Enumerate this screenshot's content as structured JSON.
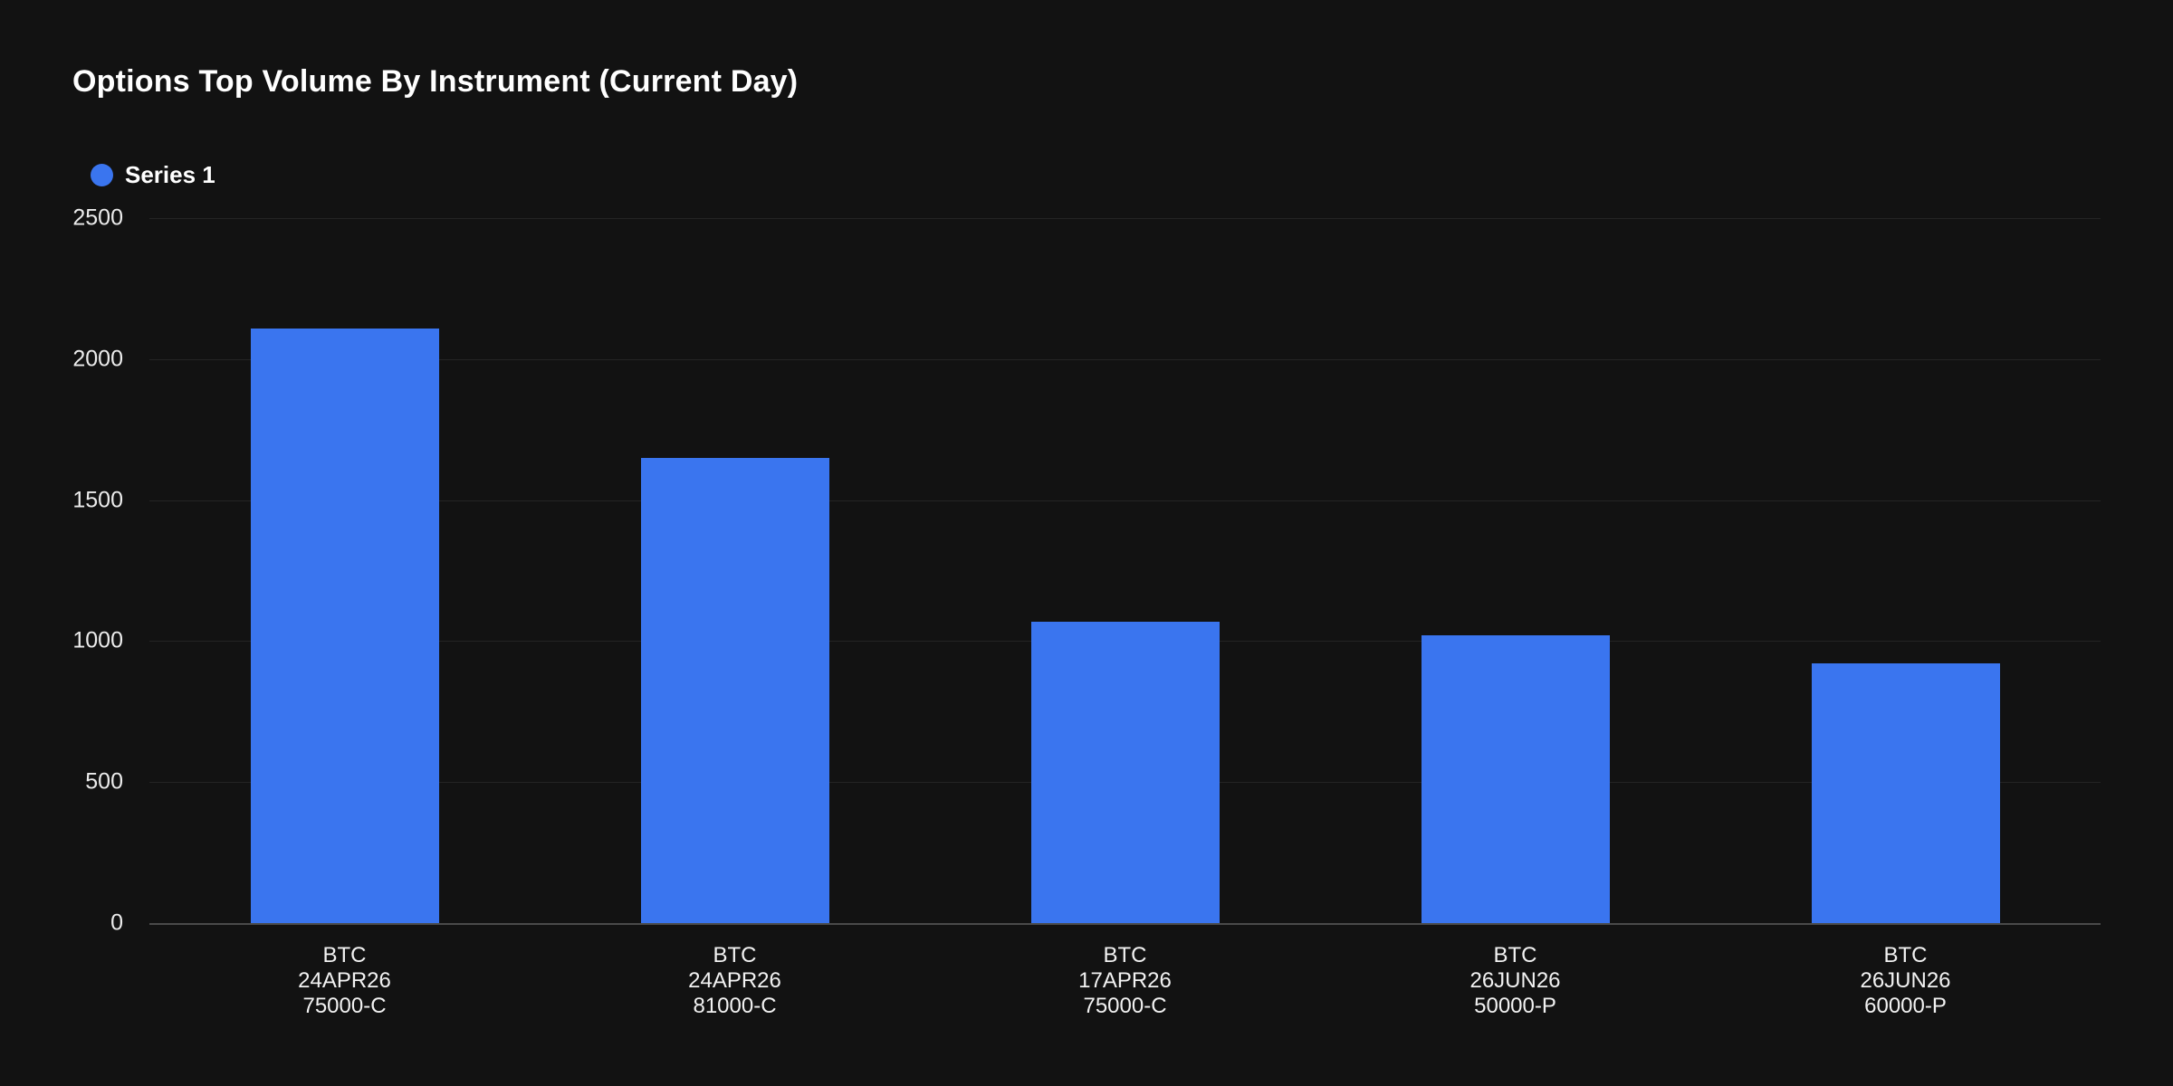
{
  "header": {
    "title": "Options Top Volume By Instrument (Current Day)"
  },
  "legend": {
    "items": [
      {
        "label": "Series 1",
        "color": "#3a75ef"
      }
    ]
  },
  "chart_data": {
    "type": "bar",
    "title": "Options Top Volume By Instrument (Current Day)",
    "categories": [
      "BTC\n24APR26\n75000-C",
      "BTC\n24APR26\n81000-C",
      "BTC\n17APR26\n75000-C",
      "BTC\n26JUN26\n50000-P",
      "BTC\n26JUN26\n60000-P"
    ],
    "series": [
      {
        "name": "Series 1",
        "color": "#3a75ef",
        "values": [
          2110,
          1650,
          1068,
          1022,
          920
        ]
      }
    ],
    "xlabel": "",
    "ylabel": "",
    "ylim": [
      0,
      2500
    ],
    "yticks": [
      0,
      500,
      1000,
      1500,
      2000,
      2500
    ],
    "grid": true,
    "legend_position": "top-left",
    "background": "#121212"
  },
  "colors": {
    "background": "#121212",
    "bar": "#3a75ef",
    "title_text": "#ffffff",
    "axis_text": "#ececec",
    "gridline": "rgba(255,255,255,0.08)",
    "axis_line": "rgba(255,255,255,0.24)"
  }
}
